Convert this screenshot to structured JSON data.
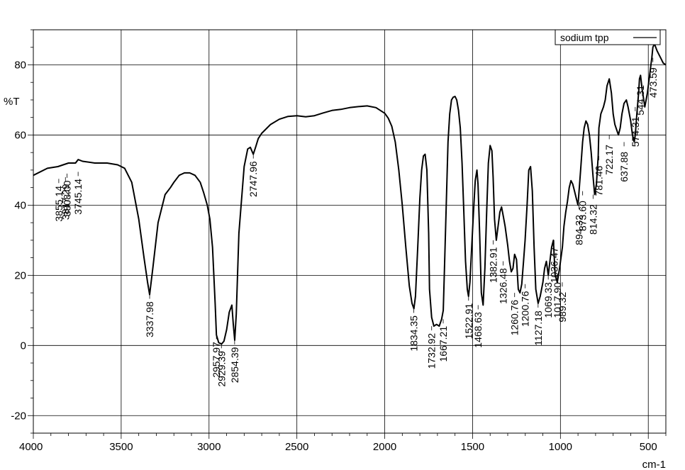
{
  "chart_data": {
    "type": "line",
    "title": "",
    "xlabel": "cm-1",
    "ylabel": "%T",
    "xlim": [
      4000,
      400
    ],
    "ylim": [
      -25,
      90
    ],
    "x_ticks": [
      4000,
      3500,
      3000,
      2500,
      2000,
      1500,
      1000,
      500
    ],
    "y_ticks": [
      -20,
      0,
      20,
      40,
      60,
      80
    ],
    "grid": true,
    "legend_position": "top-right",
    "series": [
      {
        "name": "sodium tpp",
        "color": "#000000",
        "x": [
          4000,
          3920,
          3860,
          3830,
          3800,
          3760,
          3745,
          3720,
          3650,
          3580,
          3520,
          3480,
          3440,
          3400,
          3370,
          3350,
          3338,
          3320,
          3290,
          3250,
          3220,
          3200,
          3170,
          3140,
          3110,
          3080,
          3050,
          3030,
          3010,
          2995,
          2980,
          2965,
          2958,
          2945,
          2929,
          2915,
          2900,
          2885,
          2870,
          2862,
          2854,
          2845,
          2830,
          2800,
          2780,
          2765,
          2748,
          2735,
          2720,
          2700,
          2650,
          2600,
          2550,
          2500,
          2450,
          2400,
          2350,
          2300,
          2250,
          2200,
          2150,
          2100,
          2050,
          2000,
          1980,
          1960,
          1940,
          1920,
          1900,
          1880,
          1860,
          1845,
          1834,
          1825,
          1812,
          1800,
          1790,
          1780,
          1770,
          1760,
          1750,
          1745,
          1733,
          1720,
          1705,
          1690,
          1676,
          1667,
          1660,
          1650,
          1640,
          1630,
          1620,
          1610,
          1600,
          1590,
          1580,
          1570,
          1560,
          1550,
          1540,
          1530,
          1523,
          1515,
          1505,
          1495,
          1485,
          1475,
          1469,
          1460,
          1450,
          1440,
          1430,
          1420,
          1410,
          1400,
          1390,
          1383,
          1375,
          1365,
          1355,
          1345,
          1335,
          1326,
          1315,
          1300,
          1290,
          1280,
          1270,
          1261,
          1250,
          1240,
          1230,
          1220,
          1210,
          1201,
          1190,
          1180,
          1170,
          1160,
          1150,
          1140,
          1127,
          1115,
          1100,
          1090,
          1080,
          1069,
          1060,
          1050,
          1040,
          1036,
          1030,
          1018,
          1005,
          989,
          980,
          970,
          960,
          950,
          940,
          930,
          920,
          910,
          900,
          894,
          885,
          874,
          865,
          855,
          845,
          835,
          825,
          814,
          805,
          795,
          785,
          781,
          770,
          755,
          745,
          735,
          722,
          710,
          700,
          690,
          680,
          670,
          660,
          650,
          638,
          625,
          615,
          600,
          590,
          580,
          574,
          565,
          555,
          550,
          544,
          535,
          520,
          505,
          490,
          480,
          474,
          465,
          450,
          430,
          415,
          400
        ],
        "y": [
          48.5,
          50.5,
          51,
          51.5,
          52,
          52,
          53,
          52.5,
          52,
          52,
          51.5,
          50.5,
          46.5,
          36,
          25,
          18,
          14.5,
          22,
          35,
          43,
          45,
          46.5,
          48.5,
          49.2,
          49.2,
          48.5,
          46.5,
          43.5,
          40,
          36,
          28,
          12,
          3,
          0.8,
          0.4,
          1.2,
          4.5,
          9.5,
          11.5,
          6,
          1.5,
          9,
          32,
          51,
          56,
          56.5,
          54.5,
          56.5,
          59,
          60.5,
          63,
          64.5,
          65.3,
          65.5,
          65.2,
          65.5,
          66.3,
          67,
          67.3,
          67.8,
          68.1,
          68.3,
          67.8,
          66.2,
          64.8,
          62.5,
          58,
          50,
          40,
          28,
          17,
          12,
          10.5,
          14,
          28,
          42,
          50,
          54,
          54.5,
          50,
          32,
          16,
          8,
          5.5,
          6,
          5.5,
          7.5,
          10,
          22,
          40,
          58,
          66,
          70,
          70.8,
          71,
          70,
          67,
          62,
          52,
          38,
          24,
          16,
          14,
          18,
          28,
          38,
          47,
          50,
          46,
          32,
          15,
          11.5,
          22,
          38,
          52,
          57,
          55.5,
          48,
          36,
          30,
          34,
          38,
          39.5,
          37,
          34,
          28.5,
          24,
          21,
          22,
          26,
          24.5,
          16,
          15,
          17.5,
          24,
          30,
          40,
          50,
          51,
          44,
          28,
          16,
          12,
          14,
          18,
          22,
          24,
          20,
          24,
          28,
          30,
          26,
          20,
          18,
          22,
          28,
          34,
          38,
          41,
          45,
          47,
          46,
          44,
          42,
          40,
          44,
          50,
          58,
          62,
          64,
          63,
          60,
          55,
          48,
          43,
          46,
          54,
          62,
          66,
          68,
          70,
          74,
          76,
          72,
          66,
          63,
          61.5,
          60,
          62,
          66,
          69,
          70,
          68,
          64,
          60,
          58,
          60,
          66,
          72,
          76,
          77,
          73,
          68,
          72,
          78,
          82,
          85,
          86,
          84,
          82,
          80.5,
          80
        ]
      }
    ],
    "peak_labels": [
      "3855.14",
      "3817.29",
      "3808.00",
      "3745.14",
      "3337.98",
      "2957.97",
      "2929.39",
      "2854.39",
      "2747.96",
      "1834.35",
      "1732.92",
      "1667.21",
      "1522.91",
      "1468.63",
      "1382.91",
      "1326.48",
      "1260.76",
      "1200.76",
      "1127.18",
      "1069.33",
      "1036.47",
      "1017.90",
      "989.32",
      "894.32",
      "873.60",
      "814.32",
      "781.46",
      "722.17",
      "637.88",
      "574.31",
      "544.31",
      "473.59"
    ],
    "peaks": [
      {
        "x": 3855.14,
        "y": 47.5,
        "text": "3855.14"
      },
      {
        "x": 3817.29,
        "y": 48,
        "text": "3817.29"
      },
      {
        "x": 3808.0,
        "y": 49,
        "text": "3808.00"
      },
      {
        "x": 3745.14,
        "y": 49.5,
        "text": "3745.14"
      },
      {
        "x": 3337.98,
        "y": 14.5,
        "text": "3337.98"
      },
      {
        "x": 2957.97,
        "y": 3,
        "text": "2957.97"
      },
      {
        "x": 2929.39,
        "y": 0.4,
        "text": "2929.39"
      },
      {
        "x": 2854.39,
        "y": 1.5,
        "text": "2854.39"
      },
      {
        "x": 2747.96,
        "y": 54.5,
        "text": "2747.96"
      },
      {
        "x": 1834.35,
        "y": 10.5,
        "text": "1834.35"
      },
      {
        "x": 1732.92,
        "y": 5.5,
        "text": "1732.92"
      },
      {
        "x": 1667.21,
        "y": 7.5,
        "text": "1667.21"
      },
      {
        "x": 1522.91,
        "y": 14,
        "text": "1522.91"
      },
      {
        "x": 1468.63,
        "y": 11.5,
        "text": "1468.63"
      },
      {
        "x": 1382.91,
        "y": 30,
        "text": "1382.91"
      },
      {
        "x": 1326.48,
        "y": 24,
        "text": "1326.48"
      },
      {
        "x": 1260.76,
        "y": 15,
        "text": "1260.76"
      },
      {
        "x": 1200.76,
        "y": 17.5,
        "text": "1200.76"
      },
      {
        "x": 1127.18,
        "y": 12,
        "text": "1127.18"
      },
      {
        "x": 1069.33,
        "y": 20,
        "text": "1069.33"
      },
      {
        "x": 1036.47,
        "y": 30,
        "text": "1036.47"
      },
      {
        "x": 1017.9,
        "y": 20,
        "text": "1017.90"
      },
      {
        "x": 989.32,
        "y": 18,
        "text": "989.32"
      },
      {
        "x": 894.32,
        "y": 40,
        "text": "894.32"
      },
      {
        "x": 873.6,
        "y": 44,
        "text": "873.60"
      },
      {
        "x": 814.32,
        "y": 43,
        "text": "814.32"
      },
      {
        "x": 781.46,
        "y": 54,
        "text": "781.46"
      },
      {
        "x": 722.17,
        "y": 60,
        "text": "722.17"
      },
      {
        "x": 637.88,
        "y": 58,
        "text": "637.88"
      },
      {
        "x": 574.31,
        "y": 68,
        "text": "574.31"
      },
      {
        "x": 544.31,
        "y": 77,
        "text": "544.31"
      },
      {
        "x": 473.59,
        "y": 82,
        "text": "473.59"
      }
    ]
  }
}
